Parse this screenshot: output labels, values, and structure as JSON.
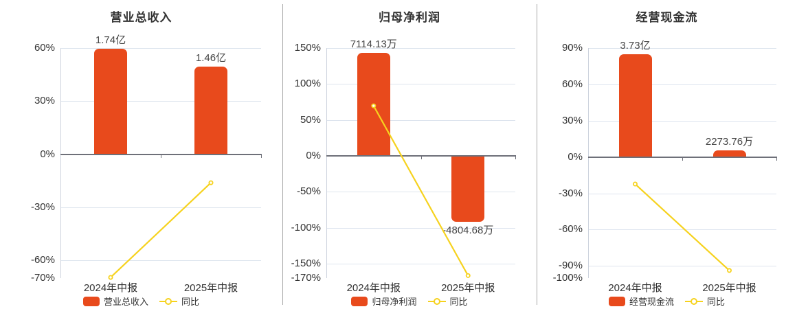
{
  "colors": {
    "bar": "#e84a1c",
    "line": "#f6d21e",
    "grid": "#dde4ee",
    "zero_axis": "#6e7079",
    "y_axis": "#ccd2dd",
    "separator": "#a8a8a8",
    "title_text": "#333333",
    "label_text": "#454545"
  },
  "chart_data": [
    {
      "type": "bar+line",
      "title": "营业总收入",
      "categories": [
        "2024年中报",
        "2025年中报"
      ],
      "bar_series": {
        "name": "营业总收入",
        "value_labels": [
          "1.74亿",
          "1.46亿"
        ],
        "plotted_pct": [
          59.6,
          49.5
        ]
      },
      "line_series": {
        "name": "同比",
        "values_pct": [
          -69.6,
          -16.1
        ]
      },
      "y_ticks": [
        60,
        30,
        0,
        -30,
        -60,
        -70
      ],
      "ylim": [
        -70,
        60
      ],
      "grid": true,
      "legend_position": "bottom"
    },
    {
      "type": "bar+line",
      "title": "归母净利润",
      "categories": [
        "2024年中报",
        "2025年中报"
      ],
      "bar_series": {
        "name": "归母净利润",
        "value_labels": [
          "7114.13万",
          "-4804.68万"
        ],
        "plotted_pct": [
          143,
          -92
        ]
      },
      "line_series": {
        "name": "同比",
        "values_pct": [
          69.7,
          -166.5
        ]
      },
      "y_ticks": [
        150,
        100,
        50,
        0,
        -50,
        -100,
        -150,
        -170
      ],
      "ylim": [
        -170,
        150
      ],
      "grid": true,
      "legend_position": "bottom"
    },
    {
      "type": "bar+line",
      "title": "经营现金流",
      "categories": [
        "2024年中报",
        "2025年中报"
      ],
      "bar_series": {
        "name": "经营现金流",
        "value_labels": [
          "3.73亿",
          "2273.76万"
        ],
        "plotted_pct": [
          85,
          5.5
        ]
      },
      "line_series": {
        "name": "同比",
        "values_pct": [
          -22.3,
          -93.7
        ]
      },
      "y_ticks": [
        90,
        60,
        30,
        0,
        -30,
        -60,
        -90,
        -100
      ],
      "ylim": [
        -100,
        90
      ],
      "grid": true,
      "legend_position": "bottom"
    }
  ]
}
